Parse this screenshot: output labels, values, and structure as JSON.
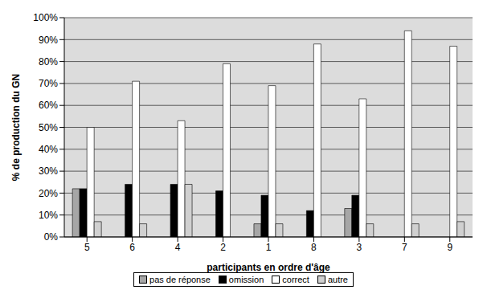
{
  "chart_data": {
    "type": "bar",
    "x_label": "participants en ordre d'âge",
    "y_label": "% de production du GN",
    "categories": [
      "5",
      "6",
      "4",
      "2",
      "1",
      "8",
      "3",
      "7",
      "9"
    ],
    "series": [
      {
        "name": "pas de réponse",
        "color": "#a6a6a6",
        "values": [
          22,
          0,
          0,
          0,
          6,
          0,
          13,
          0,
          0
        ]
      },
      {
        "name": "omission",
        "color": "#000000",
        "values": [
          22,
          24,
          24,
          21,
          19,
          12,
          19,
          0,
          0
        ]
      },
      {
        "name": "correct",
        "color": "#ffffff",
        "values": [
          50,
          71,
          53,
          79,
          69,
          88,
          63,
          94,
          87
        ]
      },
      {
        "name": "autre",
        "color": "#d0d0d0",
        "values": [
          7,
          6,
          24,
          0,
          6,
          0,
          6,
          6,
          7
        ]
      }
    ],
    "ylim": [
      0,
      100
    ],
    "yticks": [
      {
        "value": 0,
        "label": "0%"
      },
      {
        "value": 10,
        "label": "10%"
      },
      {
        "value": 20,
        "label": "20%"
      },
      {
        "value": 30,
        "label": "30%"
      },
      {
        "value": 40,
        "label": "40%"
      },
      {
        "value": 50,
        "label": "50%"
      },
      {
        "value": 60,
        "label": "60%"
      },
      {
        "value": 70,
        "label": "70%"
      },
      {
        "value": 80,
        "label": "80%"
      },
      {
        "value": 90,
        "label": "90%"
      },
      {
        "value": 100,
        "label": "100%"
      }
    ],
    "grid": true,
    "legend": "bottom"
  }
}
